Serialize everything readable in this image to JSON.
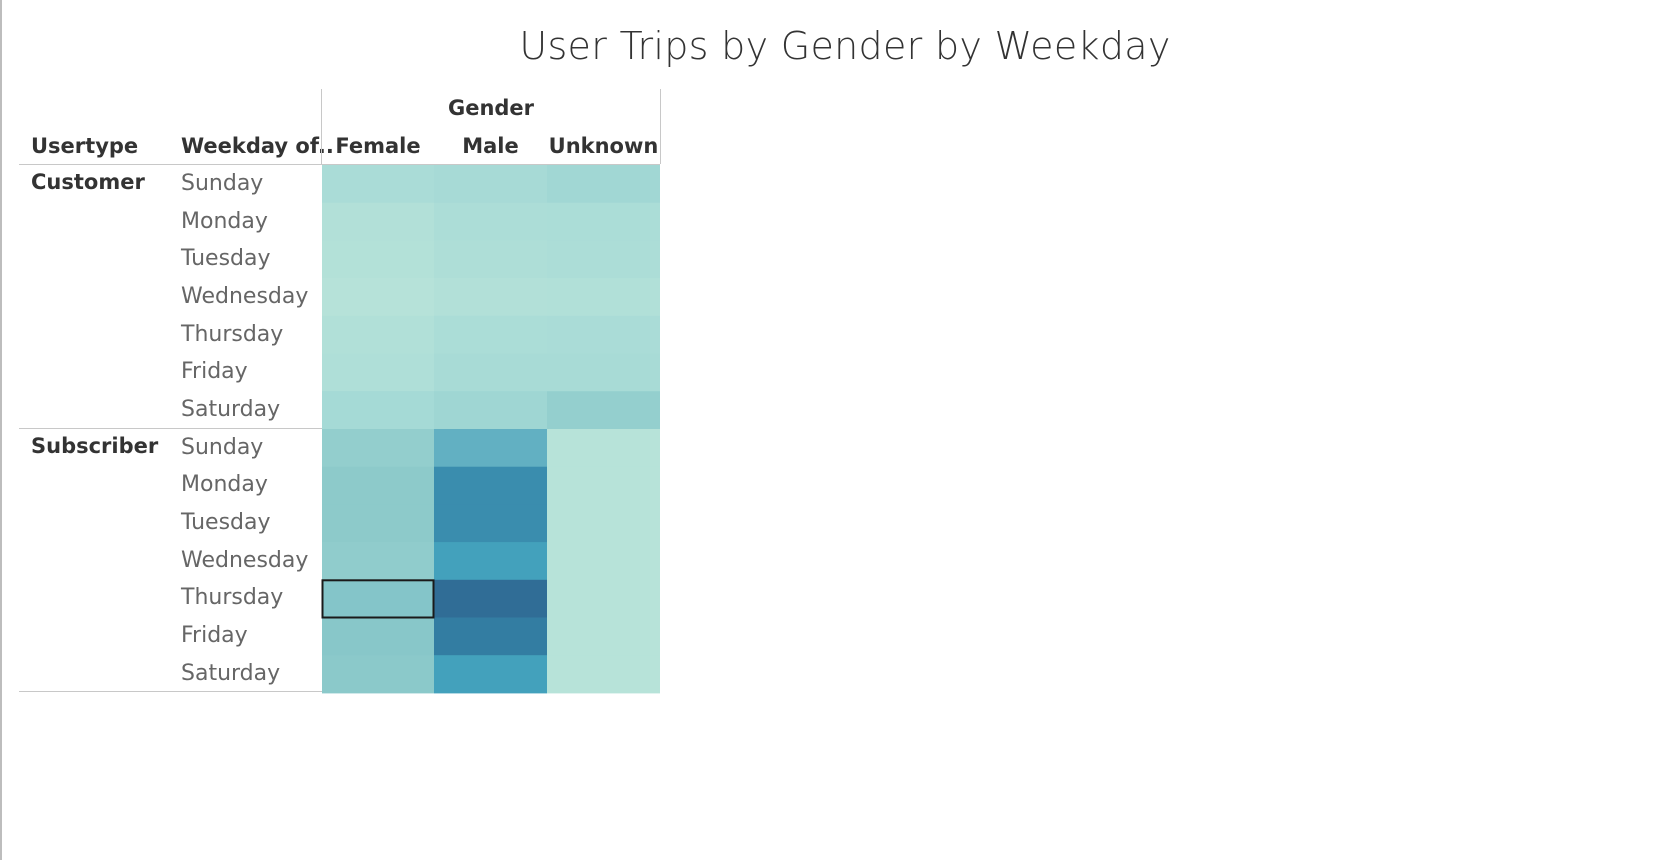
{
  "chart_data": {
    "type": "heatmap",
    "title": "User Trips by Gender by Weekday",
    "column_group_label": "Gender",
    "row_header_1": "Usertype",
    "row_header_2": "Weekday of..",
    "columns": [
      "Female",
      "Male",
      "Unknown"
    ],
    "row_groups": [
      {
        "name": "Customer",
        "rows": [
          "Sunday",
          "Monday",
          "Tuesday",
          "Wednesday",
          "Thursday",
          "Friday",
          "Saturday"
        ],
        "values": [
          [
            0.14,
            0.16,
            0.2
          ],
          [
            0.08,
            0.12,
            0.13
          ],
          [
            0.07,
            0.11,
            0.12
          ],
          [
            0.05,
            0.08,
            0.09
          ],
          [
            0.09,
            0.13,
            0.14
          ],
          [
            0.1,
            0.15,
            0.15
          ],
          [
            0.17,
            0.21,
            0.28
          ]
        ]
      },
      {
        "name": "Subscriber",
        "rows": [
          "Sunday",
          "Monday",
          "Tuesday",
          "Wednesday",
          "Thursday",
          "Friday",
          "Saturday"
        ],
        "values": [
          [
            0.29,
            0.55,
            0.04
          ],
          [
            0.33,
            0.75,
            0.04
          ],
          [
            0.33,
            0.75,
            0.04
          ],
          [
            0.31,
            0.66,
            0.04
          ],
          [
            0.38,
            0.9,
            0.04
          ],
          [
            0.36,
            0.82,
            0.04
          ],
          [
            0.34,
            0.66,
            0.04
          ]
        ]
      }
    ],
    "selected_cell": {
      "group": "Subscriber",
      "row": "Thursday",
      "column": "Female"
    },
    "color_scale": [
      "#bde6da",
      "#a6dad6",
      "#8ccaca",
      "#70b7c5",
      "#41a0bc",
      "#327aa0",
      "#2d5a86"
    ]
  }
}
